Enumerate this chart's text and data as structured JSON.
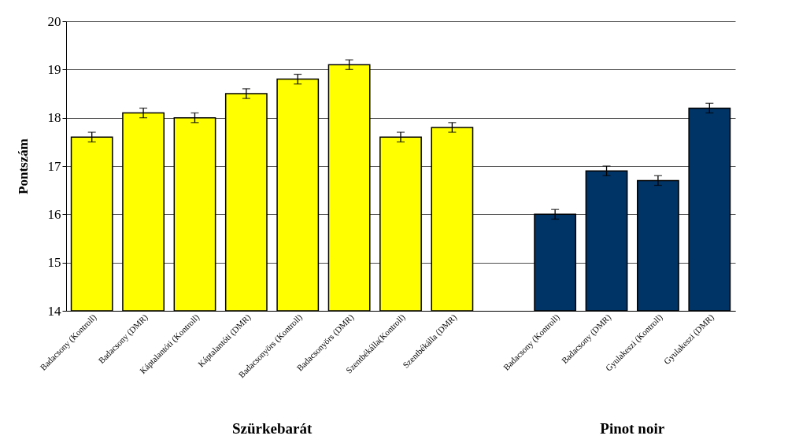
{
  "chart_data": {
    "type": "bar",
    "categories": [
      "Badacsony (Kontroll)",
      "Badacsony (DMR)",
      "Káptalantóti (Kontroll)",
      "Káptalantóti (DMR)",
      "Badacsonyörs (Kontroll)",
      "Badacsonyörs (DMR)",
      "Szentbékálla(Kontroll)",
      "Szentbékálla (DMR)",
      null,
      "Badacsony (Kontroll)",
      "Badacsony (DMR)",
      "Gyulakeszi (Kontroll)",
      "Gyulakeszi (DMR)"
    ],
    "values": [
      17.6,
      18.1,
      18.0,
      18.5,
      18.8,
      19.1,
      17.6,
      17.8,
      null,
      16.0,
      16.9,
      16.7,
      18.2
    ],
    "errors": [
      0.1,
      0.1,
      0.1,
      0.1,
      0.1,
      0.1,
      0.1,
      0.1,
      null,
      0.1,
      0.1,
      0.1,
      0.1
    ],
    "colors": [
      "#ffff00",
      "#ffff00",
      "#ffff00",
      "#ffff00",
      "#ffff00",
      "#ffff00",
      "#ffff00",
      "#ffff00",
      "#ffff00",
      "#003366",
      "#003366",
      "#003366",
      "#003366"
    ],
    "ylabel": "Pontszám",
    "ylim": [
      14,
      20
    ],
    "yticks": [
      14,
      15,
      16,
      17,
      18,
      19,
      20
    ],
    "grid": "y",
    "annotations": [
      "Szürkebarát",
      "Pinot noir"
    ]
  }
}
